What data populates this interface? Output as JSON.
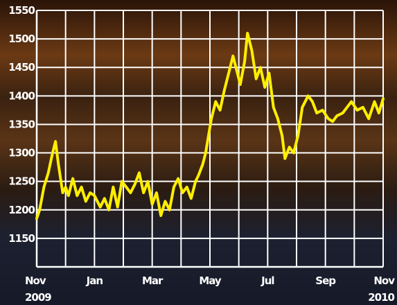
{
  "chart_data": {
    "type": "line",
    "title": "",
    "xlabel": "",
    "ylabel": "",
    "ylim": [
      1100,
      1550
    ],
    "yticks": [
      1150,
      1200,
      1250,
      1300,
      1350,
      1400,
      1450,
      1500,
      1550
    ],
    "xticks": [
      {
        "month": 0,
        "label": "Nov",
        "sub": "2009"
      },
      {
        "month": 2,
        "label": "Jan",
        "sub": ""
      },
      {
        "month": 4,
        "label": "Mar",
        "sub": ""
      },
      {
        "month": 6,
        "label": "May",
        "sub": ""
      },
      {
        "month": 8,
        "label": "Jul",
        "sub": ""
      },
      {
        "month": 10,
        "label": "Sep",
        "sub": ""
      },
      {
        "month": 12,
        "label": "Nov",
        "sub": "2010"
      }
    ],
    "xlim_months": [
      0,
      12
    ],
    "grid": true,
    "line_color": "#ffee00",
    "series": [
      {
        "x_months": [
          0,
          0.1,
          0.25,
          0.4,
          0.55,
          0.65,
          0.75,
          0.9,
          1.0,
          1.1,
          1.25,
          1.4,
          1.55,
          1.7,
          1.85,
          2.0,
          2.2,
          2.35,
          2.5,
          2.65,
          2.8,
          2.95,
          3.1,
          3.25,
          3.4,
          3.55,
          3.7,
          3.85,
          4.0,
          4.15,
          4.3,
          4.45,
          4.6,
          4.75,
          4.9,
          5.05,
          5.2,
          5.35,
          5.5,
          5.6,
          5.75,
          5.85,
          5.95,
          6.05,
          6.2,
          6.35,
          6.5,
          6.65,
          6.8,
          6.95,
          7.05,
          7.2,
          7.3,
          7.45,
          7.6,
          7.75,
          7.9,
          8.05,
          8.2,
          8.35,
          8.5,
          8.6,
          8.75,
          8.9,
          9.05,
          9.2,
          9.4,
          9.55,
          9.7,
          9.9,
          10.1,
          10.25,
          10.4,
          10.6,
          10.75,
          10.9,
          11.1,
          11.3,
          11.5,
          11.7,
          11.85,
          12.0
        ],
        "values": [
          1185,
          1200,
          1240,
          1265,
          1300,
          1320,
          1280,
          1230,
          1240,
          1225,
          1255,
          1225,
          1240,
          1215,
          1230,
          1225,
          1205,
          1220,
          1200,
          1240,
          1205,
          1250,
          1240,
          1230,
          1245,
          1265,
          1230,
          1250,
          1210,
          1230,
          1190,
          1215,
          1200,
          1240,
          1255,
          1230,
          1240,
          1220,
          1250,
          1260,
          1280,
          1300,
          1330,
          1360,
          1390,
          1375,
          1410,
          1440,
          1470,
          1440,
          1420,
          1460,
          1510,
          1480,
          1430,
          1450,
          1415,
          1440,
          1380,
          1360,
          1330,
          1290,
          1310,
          1300,
          1330,
          1380,
          1400,
          1390,
          1370,
          1375,
          1360,
          1355,
          1365,
          1370,
          1380,
          1390,
          1375,
          1380,
          1360,
          1390,
          1370,
          1395
        ]
      }
    ]
  }
}
